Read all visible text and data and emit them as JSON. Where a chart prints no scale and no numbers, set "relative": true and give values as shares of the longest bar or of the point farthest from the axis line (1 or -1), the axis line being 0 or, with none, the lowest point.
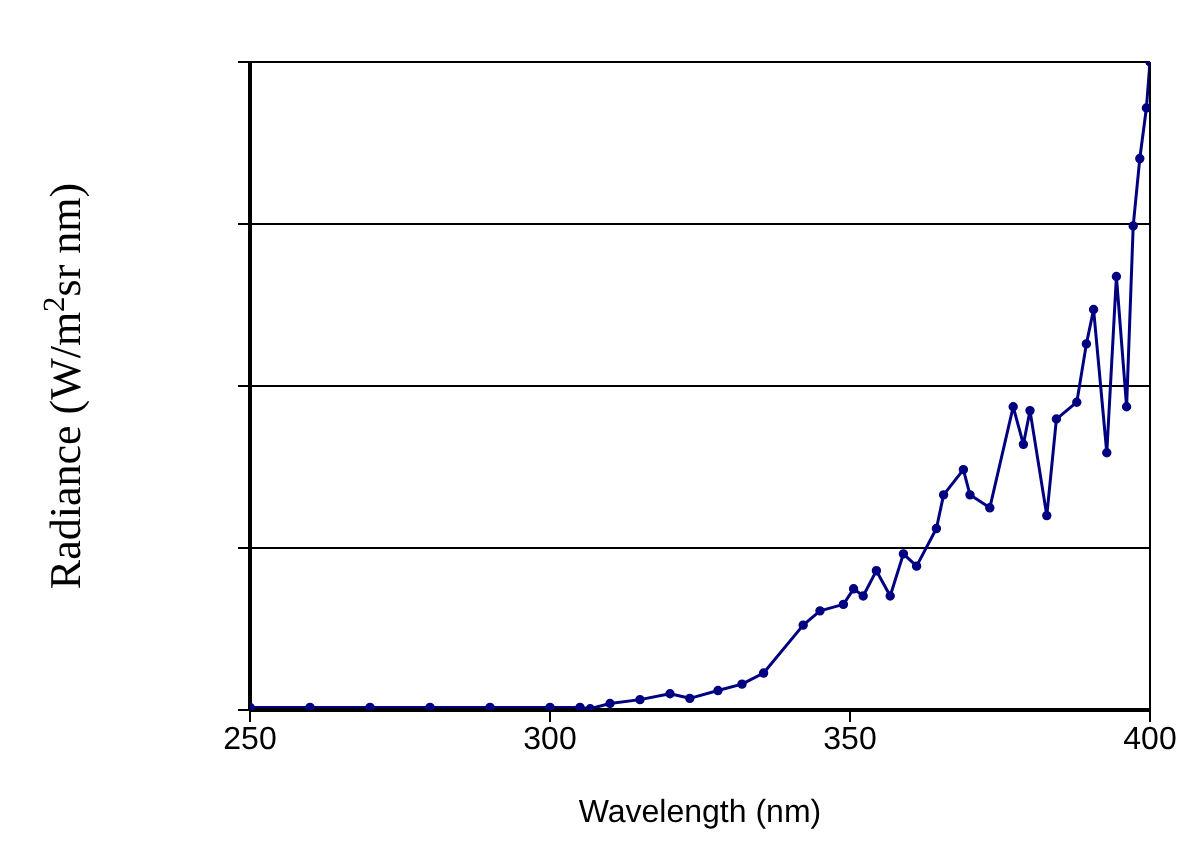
{
  "chart_data": {
    "type": "line",
    "xlabel": "Wavelength (nm)",
    "ylabel": "Radiance (W/m$^{2}$sr nm)",
    "relative": true,
    "grid": "y",
    "marker": "circle",
    "line_style": "solid",
    "xlim": [
      250,
      400
    ],
    "xticks": [
      250,
      300,
      350,
      400
    ],
    "series": [
      {
        "color": "#000080",
        "x": [
          250,
          260,
          270,
          280,
          290,
          300,
          305,
          306.7,
          310,
          315,
          320,
          323.3,
          328,
          332,
          335.6,
          342.2,
          345,
          348.9,
          350.6,
          352.2,
          354.4,
          356.7,
          358.9,
          361.1,
          364.4,
          365.6,
          368.9,
          370,
          373.3,
          377.2,
          378.9,
          380,
          382.8,
          384.4,
          387.8,
          389.4,
          390.6,
          392.8,
          394.4,
          396.1,
          397.2,
          398.3,
          399.4,
          400
        ],
        "values": [
          0.004,
          0.004,
          0.004,
          0.004,
          0.004,
          0.004,
          0.004,
          0.002,
          0.01,
          0.016,
          0.025,
          0.018,
          0.03,
          0.04,
          0.057,
          0.131,
          0.153,
          0.163,
          0.187,
          0.176,
          0.215,
          0.176,
          0.241,
          0.222,
          0.28,
          0.332,
          0.371,
          0.332,
          0.312,
          0.468,
          0.41,
          0.462,
          0.3,
          0.449,
          0.475,
          0.565,
          0.618,
          0.397,
          0.669,
          0.468,
          0.747,
          0.851,
          0.929,
          1
        ]
      }
    ]
  }
}
